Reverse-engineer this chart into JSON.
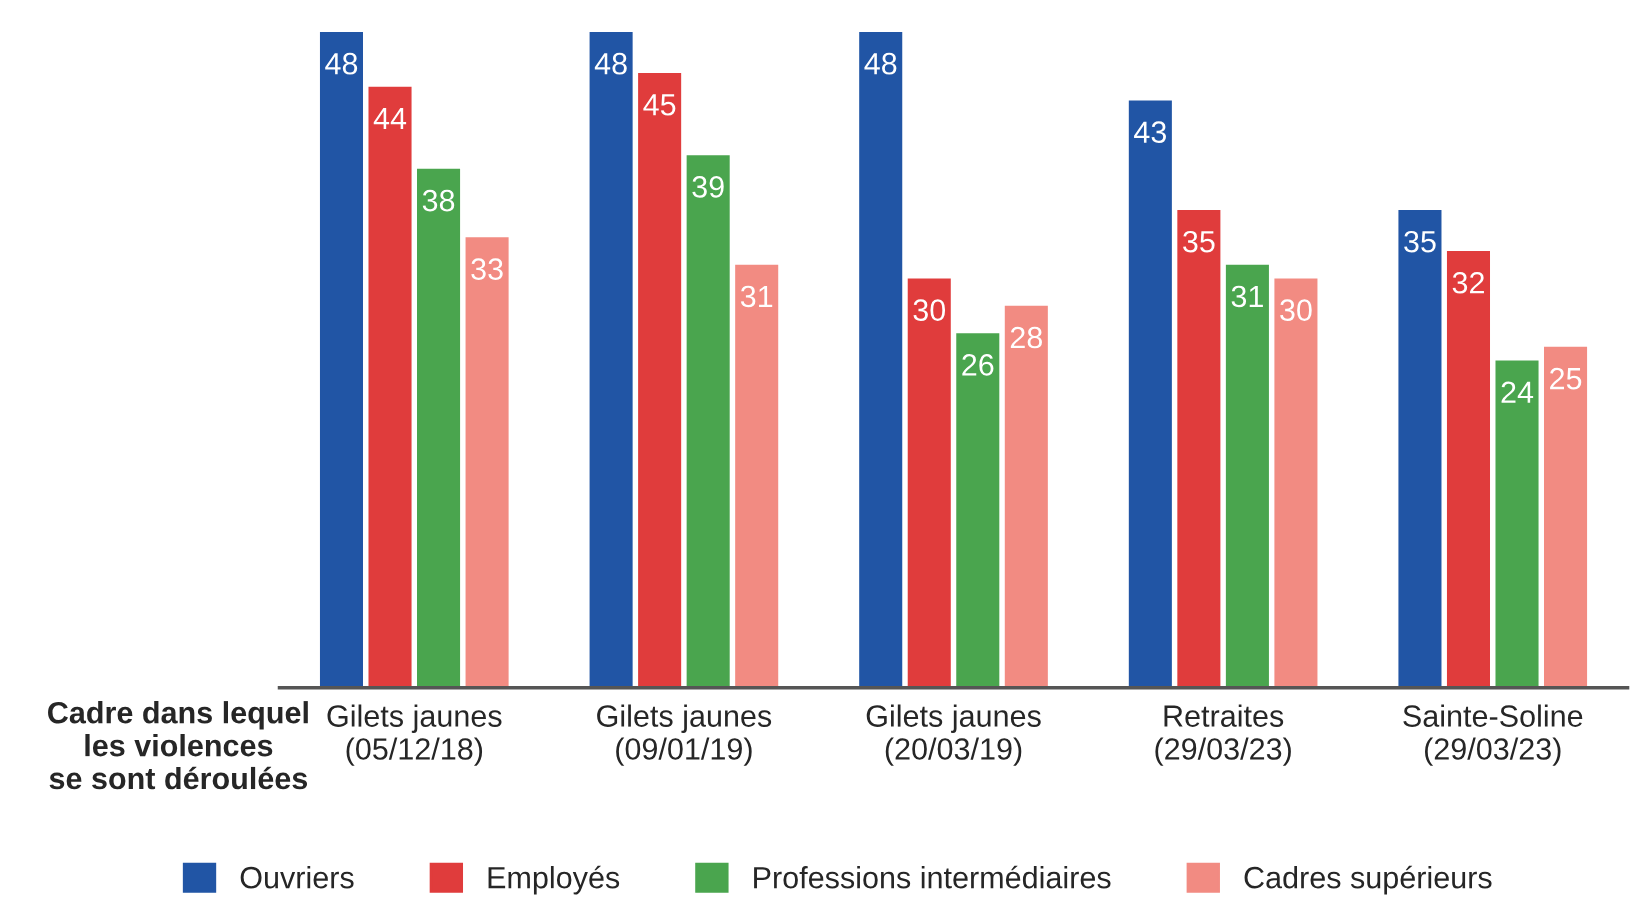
{
  "chart_data": {
    "type": "bar",
    "xlabel": "Cadre dans lequel\nles violences\nse sont déroulées",
    "categories": [
      "Gilets jaunes\n(05/12/18)",
      "Gilets jaunes\n(09/01/19)",
      "Gilets jaunes\n(20/03/19)",
      "Retraites\n(29/03/23)",
      "Sainte-Soline\n(29/03/23)"
    ],
    "series": [
      {
        "name": "Ouvriers",
        "color": "#2155a5",
        "values": [
          48,
          48,
          48,
          43,
          35
        ]
      },
      {
        "name": "Employés",
        "color": "#e03c3c",
        "values": [
          44,
          45,
          30,
          35,
          32
        ]
      },
      {
        "name": "Professions intermédiaires",
        "color": "#4aa54e",
        "values": [
          38,
          39,
          26,
          31,
          24
        ]
      },
      {
        "name": "Cadres supérieurs",
        "color": "#f28b82",
        "values": [
          33,
          31,
          28,
          30,
          25
        ]
      }
    ],
    "data_labels": true,
    "legend": "bottom",
    "grid": false
  }
}
